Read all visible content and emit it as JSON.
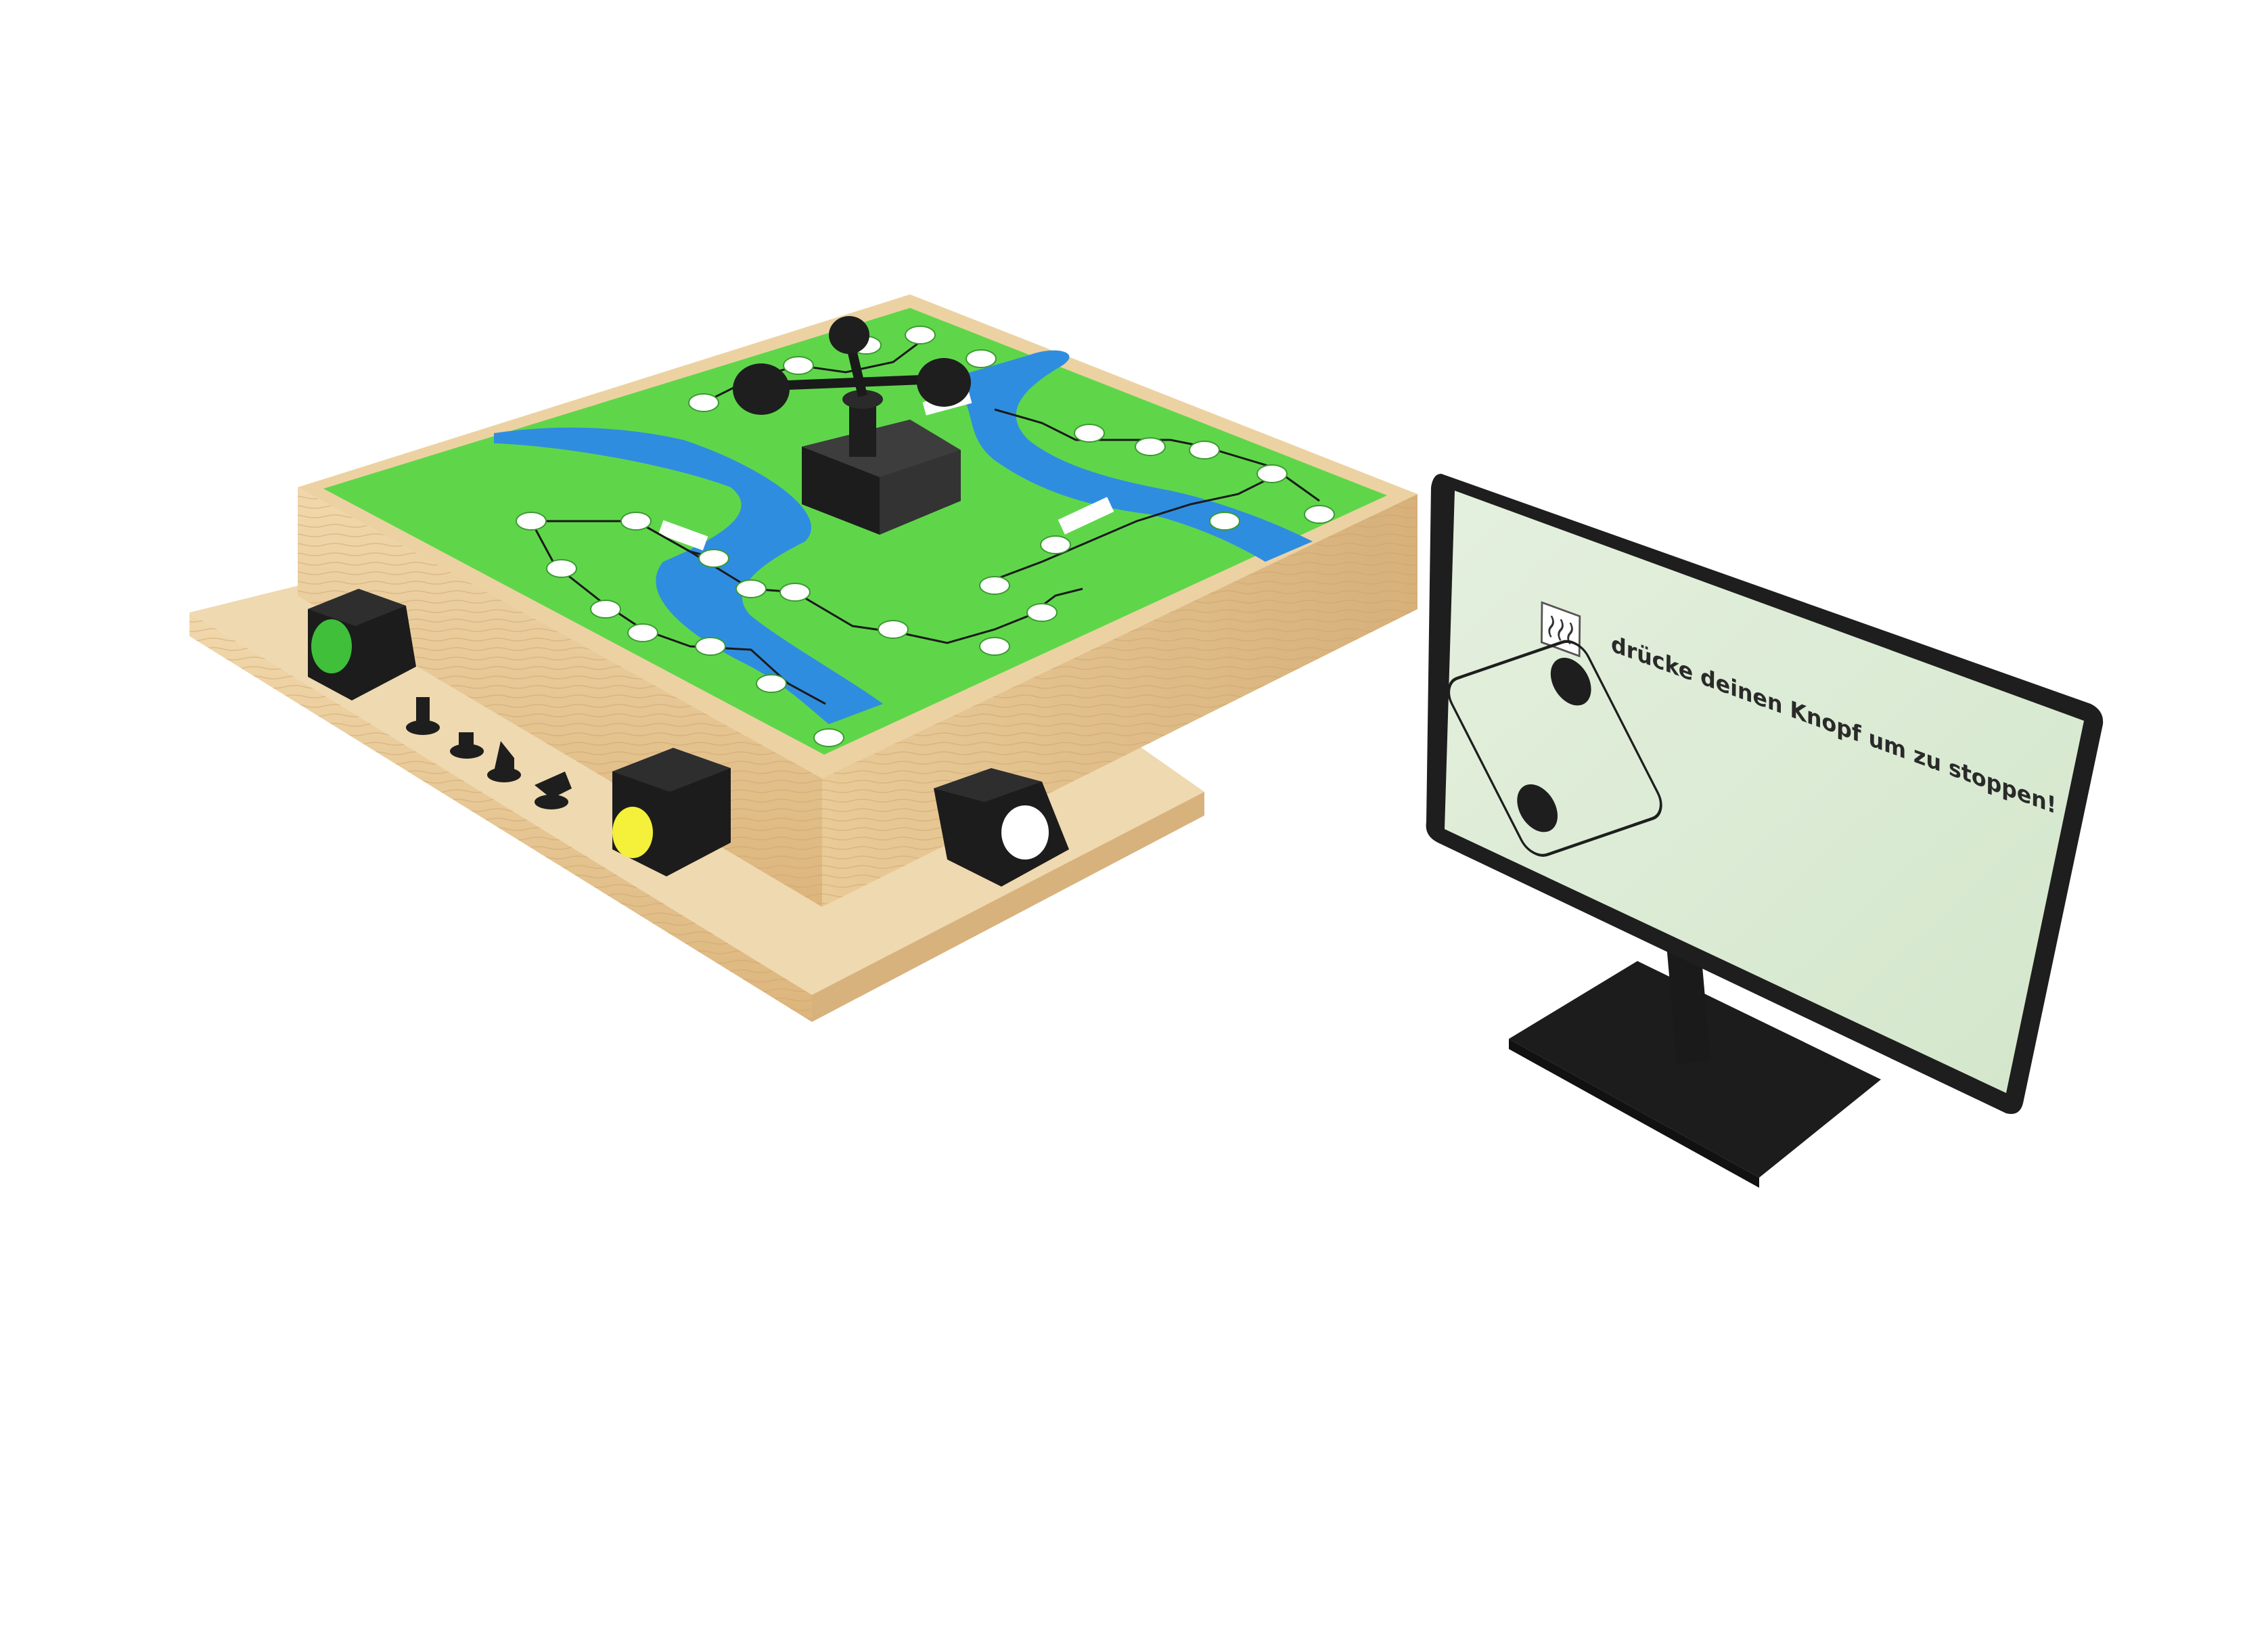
{
  "screen": {
    "message": "drücke deinen Knopf um zu stoppen!",
    "icon": "heat-waves-icon",
    "die_value": 2
  },
  "board": {
    "colors": {
      "grass": "#5fd64a",
      "river": "#2f8de0",
      "wood": "#e8c896",
      "box": "#222222",
      "button_green": "#3fbf3a",
      "button_yellow": "#f5f03a",
      "button_white": "#ffffff",
      "screen_bg": "#d9ead3"
    },
    "buttons": [
      "green",
      "yellow",
      "white"
    ],
    "figures_count": 4
  }
}
